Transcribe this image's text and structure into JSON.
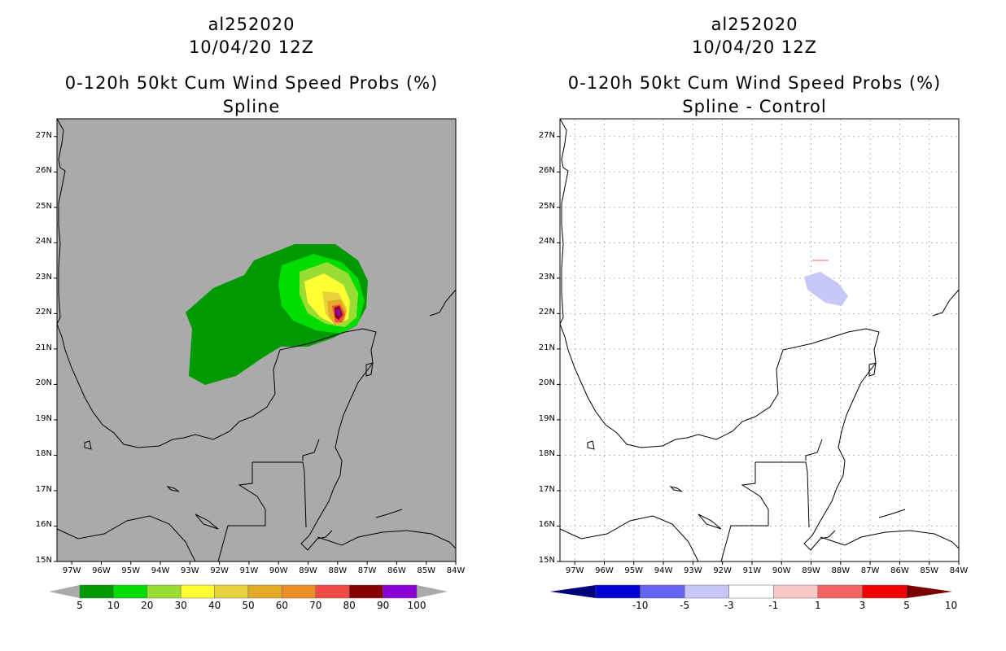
{
  "left_panel": {
    "storm_id": "al252020",
    "datetime": "10/04/20 12Z",
    "product_title": "0-120h 50kt Cum Wind Speed Probs (%)",
    "subtitle": "Spline",
    "colorbar_labels": [
      "5",
      "10",
      "20",
      "30",
      "40",
      "50",
      "60",
      "70",
      "80",
      "90",
      "100"
    ],
    "colorbar_colors": [
      "#009900",
      "#00dd00",
      "#99dd33",
      "#ffff33",
      "#e8d23c",
      "#e3aa28",
      "#ec8d28",
      "#f04a46",
      "#880000",
      "#8a00d4"
    ]
  },
  "right_panel": {
    "storm_id": "al252020",
    "datetime": "10/04/20 12Z",
    "product_title": "0-120h 50kt Cum Wind Speed Probs (%)",
    "subtitle": "Spline - Control",
    "colorbar_labels": [
      "-10",
      "-5",
      "-3",
      "-1",
      "1",
      "3",
      "5",
      "10"
    ],
    "colorbar_colors": [
      "#0000d4",
      "#6464f0",
      "#c8c8f8",
      "#ffffff",
      "#f8c8c8",
      "#f06464",
      "#f00000"
    ]
  },
  "map_axes": {
    "lat_labels": [
      "27N",
      "26N",
      "25N",
      "24N",
      "23N",
      "22N",
      "21N",
      "20N",
      "19N",
      "18N",
      "17N",
      "16N",
      "15N"
    ],
    "lon_labels": [
      "97W",
      "96W",
      "95W",
      "94W",
      "93W",
      "92W",
      "91W",
      "90W",
      "89W",
      "88W",
      "87W",
      "86W",
      "85W",
      "84W"
    ],
    "lat_range": [
      15,
      27.5
    ],
    "lon_range": [
      -97.5,
      -84
    ]
  },
  "colors": {
    "background_left": "#aaaaaa",
    "background_right": "#ffffff",
    "coastline": "#000000",
    "grid_right": "#b8b8b8"
  }
}
